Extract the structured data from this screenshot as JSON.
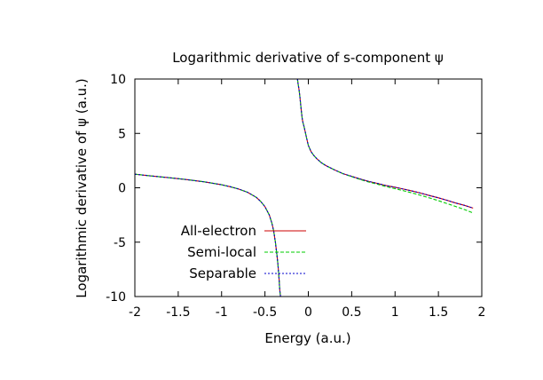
{
  "chart_data": {
    "type": "line",
    "title": "Logarithmic derivative of s-component ψ",
    "xlabel": "Energy (a.u.)",
    "ylabel": "Logarithmic derivative of ψ (a.u.)",
    "xlim": [
      -2,
      2
    ],
    "ylim": [
      -10,
      10
    ],
    "xticks": [
      -2,
      -1.5,
      -1,
      -0.5,
      0,
      0.5,
      1,
      1.5,
      2
    ],
    "xtick_labels": [
      "-2",
      "-1.5",
      "-1",
      "-0.5",
      "0",
      "0.5",
      "1",
      "1.5",
      "2"
    ],
    "yticks": [
      -10,
      -5,
      0,
      5,
      10
    ],
    "ytick_labels": [
      "-10",
      "-5",
      "0",
      "5",
      "10"
    ],
    "grid": false,
    "legend_position": "bottom-left",
    "pole_energy": -0.28,
    "series": [
      {
        "name": "All-electron",
        "color": "#cc0000",
        "dash": "solid",
        "branches": [
          {
            "x": [
              -2.0,
              -1.8,
              -1.6,
              -1.4,
              -1.2,
              -1.0,
              -0.9,
              -0.8,
              -0.7,
              -0.6,
              -0.55,
              -0.5,
              -0.45,
              -0.42,
              -0.4,
              -0.38,
              -0.36,
              -0.35,
              -0.34,
              -0.335,
              -0.33,
              -0.325,
              -0.32
            ],
            "y": [
              1.25,
              1.08,
              0.92,
              0.75,
              0.55,
              0.28,
              0.1,
              -0.12,
              -0.42,
              -0.88,
              -1.24,
              -1.74,
              -2.5,
              -3.24,
              -3.95,
              -5.0,
              -6.3,
              -7.1,
              -8.1,
              -8.7,
              -9.3,
              -9.7,
              -10.0
            ]
          },
          {
            "x": [
              -0.125,
              -0.12,
              -0.11,
              -0.1,
              -0.09,
              -0.08,
              -0.07,
              -0.06,
              -0.05,
              -0.04,
              -0.02,
              0.0,
              0.03,
              0.06,
              0.1,
              0.15,
              0.2,
              0.3,
              0.4,
              0.5,
              0.6,
              0.7,
              0.8,
              0.9,
              1.0,
              1.1,
              1.2,
              1.3,
              1.4,
              1.5,
              1.6,
              1.7,
              1.8,
              1.9
            ],
            "y": [
              10.0,
              9.65,
              9.2,
              8.6,
              7.8,
              7.0,
              6.3,
              5.95,
              5.65,
              5.3,
              4.6,
              3.9,
              3.35,
              3.0,
              2.65,
              2.3,
              2.05,
              1.65,
              1.3,
              1.05,
              0.8,
              0.58,
              0.4,
              0.2,
              0.05,
              -0.12,
              -0.3,
              -0.5,
              -0.72,
              -0.92,
              -1.15,
              -1.4,
              -1.62,
              -1.87
            ]
          }
        ]
      },
      {
        "name": "Semi-local",
        "color": "#00cc00",
        "dash": "4,2",
        "branches": [
          {
            "x": [
              -2.0,
              -1.8,
              -1.6,
              -1.4,
              -1.2,
              -1.0,
              -0.9,
              -0.8,
              -0.7,
              -0.6,
              -0.55,
              -0.5,
              -0.45,
              -0.42,
              -0.4,
              -0.38,
              -0.36,
              -0.35,
              -0.34,
              -0.335,
              -0.33,
              -0.325,
              -0.32
            ],
            "y": [
              1.25,
              1.08,
              0.92,
              0.75,
              0.55,
              0.28,
              0.1,
              -0.12,
              -0.42,
              -0.88,
              -1.24,
              -1.74,
              -2.5,
              -3.24,
              -3.95,
              -5.0,
              -6.3,
              -7.1,
              -8.1,
              -8.7,
              -9.3,
              -9.7,
              -10.0
            ]
          },
          {
            "x": [
              -0.125,
              -0.12,
              -0.11,
              -0.1,
              -0.09,
              -0.08,
              -0.07,
              -0.06,
              -0.05,
              -0.04,
              -0.02,
              0.0,
              0.03,
              0.06,
              0.1,
              0.15,
              0.2,
              0.3,
              0.4,
              0.5,
              0.6,
              0.7,
              0.8,
              0.9,
              1.0,
              1.1,
              1.2,
              1.3,
              1.4,
              1.5,
              1.6,
              1.7,
              1.8,
              1.9
            ],
            "y": [
              10.0,
              9.65,
              9.2,
              8.6,
              7.8,
              7.0,
              6.3,
              5.95,
              5.65,
              5.3,
              4.6,
              3.9,
              3.35,
              3.0,
              2.65,
              2.3,
              2.05,
              1.65,
              1.3,
              1.02,
              0.76,
              0.52,
              0.32,
              0.1,
              -0.08,
              -0.28,
              -0.48,
              -0.7,
              -0.94,
              -1.18,
              -1.45,
              -1.72,
              -2.0,
              -2.32
            ]
          }
        ]
      },
      {
        "name": "Separable",
        "color": "#0000cc",
        "dash": "2,2",
        "branches": [
          {
            "x": [
              -2.0,
              -1.8,
              -1.6,
              -1.4,
              -1.2,
              -1.0,
              -0.9,
              -0.8,
              -0.7,
              -0.6,
              -0.55,
              -0.5,
              -0.45,
              -0.42,
              -0.4,
              -0.38,
              -0.36,
              -0.35,
              -0.34,
              -0.335,
              -0.33,
              -0.325,
              -0.32
            ],
            "y": [
              1.25,
              1.08,
              0.92,
              0.75,
              0.55,
              0.28,
              0.1,
              -0.12,
              -0.42,
              -0.88,
              -1.24,
              -1.74,
              -2.5,
              -3.24,
              -3.95,
              -5.0,
              -6.3,
              -7.1,
              -8.1,
              -8.7,
              -9.3,
              -9.7,
              -10.0
            ]
          },
          {
            "x": [
              -0.125,
              -0.12,
              -0.11,
              -0.1,
              -0.09,
              -0.08,
              -0.07,
              -0.06,
              -0.05,
              -0.04,
              -0.02,
              0.0,
              0.03,
              0.06,
              0.1,
              0.15,
              0.2,
              0.3,
              0.4,
              0.5,
              0.6,
              0.7,
              0.8,
              0.9,
              1.0,
              1.1,
              1.2,
              1.3,
              1.4,
              1.5,
              1.6,
              1.7,
              1.8,
              1.9
            ],
            "y": [
              10.0,
              9.65,
              9.2,
              8.6,
              7.8,
              7.0,
              6.3,
              5.95,
              5.65,
              5.3,
              4.6,
              3.9,
              3.35,
              3.0,
              2.65,
              2.3,
              2.05,
              1.65,
              1.3,
              1.05,
              0.8,
              0.58,
              0.4,
              0.2,
              0.05,
              -0.12,
              -0.3,
              -0.5,
              -0.72,
              -0.92,
              -1.15,
              -1.4,
              -1.62,
              -1.87
            ]
          }
        ]
      }
    ]
  }
}
